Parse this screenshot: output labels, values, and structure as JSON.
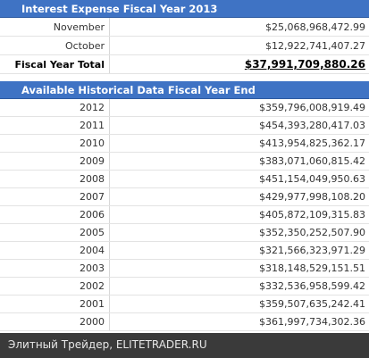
{
  "section1": {
    "title": "Interest Expense Fiscal Year 2013",
    "rows": [
      [
        "November",
        "$25,068,968,472.99"
      ],
      [
        "October",
        "$12,922,741,407.27"
      ]
    ],
    "total": [
      "Fiscal Year Total",
      "$37,991,709,880.26"
    ]
  },
  "section2": {
    "title": "Available Historical Data Fiscal Year End",
    "rows": [
      [
        "2012",
        "$359,796,008,919.49"
      ],
      [
        "2011",
        "$454,393,280,417.03"
      ],
      [
        "2010",
        "$413,954,825,362.17"
      ],
      [
        "2009",
        "$383,071,060,815.42"
      ],
      [
        "2008",
        "$451,154,049,950.63"
      ],
      [
        "2007",
        "$429,977,998,108.20"
      ],
      [
        "2006",
        "$405,872,109,315.83"
      ],
      [
        "2005",
        "$352,350,252,507.90"
      ],
      [
        "2004",
        "$321,566,323,971.29"
      ],
      [
        "2003",
        "$318,148,529,151.51"
      ],
      [
        "2002",
        "$332,536,958,599.42"
      ],
      [
        "2001",
        "$359,507,635,242.41"
      ],
      [
        "2000",
        "$361,997,734,302.36"
      ]
    ]
  },
  "footer": "Элитный Трейдер, ELITETRADER.RU"
}
